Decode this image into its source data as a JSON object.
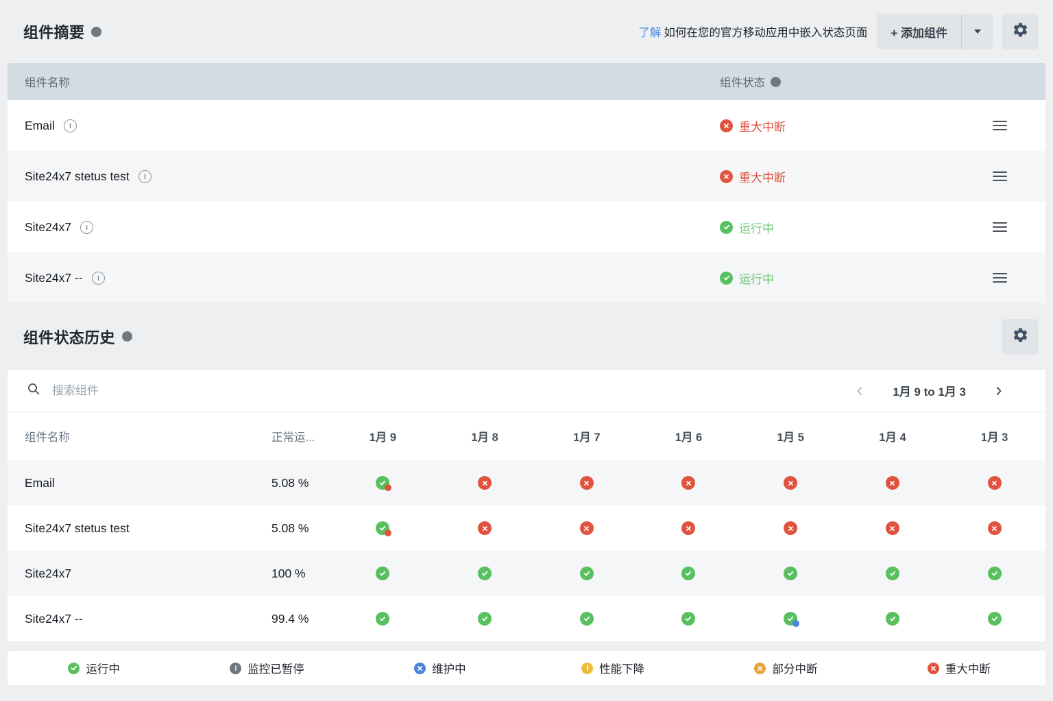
{
  "colors": {
    "green": "#58c05f",
    "red": "#e0533f",
    "orange": "#e8a23b",
    "yellow": "#eebd3d",
    "blue": "#4a84d8",
    "gray_icon": "#6e7880",
    "link": "#4f8ee8",
    "green_text": "#6ac973",
    "red_text": "#dd4e3c"
  },
  "summary": {
    "title": "组件摘要",
    "learn_link": "了解",
    "learn_text": "如何在您的官方移动应用中嵌入状态页面",
    "add_button": "+ 添加组件",
    "columns": {
      "name": "组件名称",
      "status": "组件状态"
    },
    "rows": [
      {
        "name": "Email",
        "status": "重大中断",
        "status_type": "major"
      },
      {
        "name": "Site24x7 stetus test",
        "status": "重大中断",
        "status_type": "major"
      },
      {
        "name": "Site24x7",
        "status": "运行中",
        "status_type": "operational"
      },
      {
        "name": "Site24x7 --",
        "status": "运行中",
        "status_type": "operational"
      }
    ]
  },
  "history": {
    "title": "组件状态历史",
    "search_placeholder": "搜索组件",
    "pagination_label": "1月 9 to 1月 3",
    "columns": {
      "name": "组件名称",
      "uptime": "正常运..."
    },
    "dates": [
      "1月 9",
      "1月 8",
      "1月 7",
      "1月 6",
      "1月 5",
      "1月 4",
      "1月 3"
    ],
    "rows": [
      {
        "name": "Email",
        "uptime": "5.08 %",
        "cells": [
          "up_red_dot",
          "down",
          "down",
          "down",
          "down",
          "down",
          "down"
        ]
      },
      {
        "name": "Site24x7 stetus test",
        "uptime": "5.08 %",
        "cells": [
          "up_red_dot",
          "down",
          "down",
          "down",
          "down",
          "down",
          "down"
        ]
      },
      {
        "name": "Site24x7",
        "uptime": "100 %",
        "cells": [
          "up",
          "up",
          "up",
          "up",
          "up",
          "up",
          "up"
        ]
      },
      {
        "name": "Site24x7 --",
        "uptime": "99.4 %",
        "cells": [
          "up",
          "up",
          "up",
          "up",
          "up_blue_dot",
          "up",
          "up"
        ]
      }
    ]
  },
  "legend": [
    {
      "label": "运行中",
      "type": "operational"
    },
    {
      "label": "监控已暂停",
      "type": "paused"
    },
    {
      "label": "维护中",
      "type": "maintenance"
    },
    {
      "label": "性能下降",
      "type": "degraded"
    },
    {
      "label": "部分中断",
      "type": "partial"
    },
    {
      "label": "重大中断",
      "type": "major"
    }
  ]
}
